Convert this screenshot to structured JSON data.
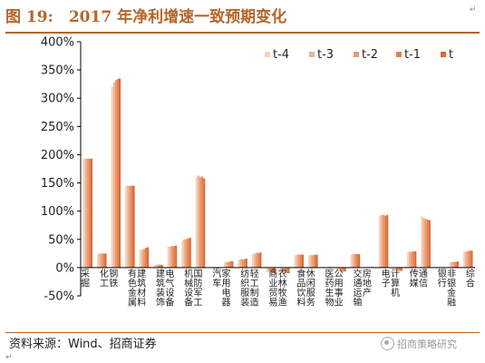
{
  "figure": {
    "title": "图 19:　2017 年净利增速一致预期变化",
    "title_mark": "↵",
    "source": "资料来源：Wind、招商证券",
    "source_mark": "↵",
    "watermark": "招商策略研究"
  },
  "chart_data": {
    "type": "bar",
    "title": "",
    "xlabel": "",
    "ylabel": "",
    "ylim": [
      -50,
      400
    ],
    "yticks": [
      -50,
      0,
      50,
      100,
      150,
      200,
      250,
      300,
      350,
      400
    ],
    "y_unit": "%",
    "grid": false,
    "legend_position": "top-right",
    "categories": [
      "采掘",
      "化工",
      "钢铁",
      "有色金属",
      "建筑材料",
      "建筑装饰",
      "电气设备",
      "机械设备",
      "国防军工",
      "汽车",
      "家用电器",
      "纺织服装",
      "轻工制造",
      "商业贸易",
      "农林牧渔",
      "食品饮料",
      "休闲服务",
      "医药生物",
      "公用事业",
      "交通运输",
      "房地产",
      "电子",
      "计算机",
      "传媒",
      "通信",
      "银行",
      "非银金融",
      "综合"
    ],
    "series": [
      {
        "name": "t-4",
        "color": "#f3d1bd",
        "values": [
          193,
          24,
          320,
          145,
          31,
          4,
          37,
          49,
          161,
          -1,
          10,
          14,
          24,
          -8,
          -8,
          22,
          22,
          1,
          -6,
          23,
          1,
          92,
          -5,
          27,
          91,
          0,
          9,
          28
        ]
      },
      {
        "name": "t-3",
        "color": "#eeb393",
        "values": [
          193,
          25,
          328,
          145,
          32,
          5,
          37,
          50,
          163,
          -1,
          10,
          15,
          25,
          -8,
          -9,
          23,
          22,
          1,
          -6,
          24,
          1,
          93,
          -5,
          28,
          88,
          0,
          10,
          29
        ]
      },
      {
        "name": "t-2",
        "color": "#e99870",
        "values": [
          193,
          25,
          332,
          145,
          33,
          5,
          38,
          51,
          160,
          -2,
          10,
          15,
          26,
          -9,
          -9,
          23,
          22,
          1,
          -7,
          24,
          1,
          93,
          -6,
          28,
          86,
          0,
          10,
          29
        ]
      },
      {
        "name": "t-1",
        "color": "#e4824f",
        "values": [
          193,
          25,
          334,
          145,
          35,
          5,
          38,
          52,
          161,
          -2,
          11,
          15,
          26,
          -9,
          -10,
          23,
          23,
          1,
          -7,
          24,
          1,
          92,
          -6,
          29,
          85,
          0,
          10,
          30
        ]
      },
      {
        "name": "t",
        "color": "#d96a34",
        "values": [
          193,
          25,
          335,
          145,
          36,
          5,
          39,
          53,
          158,
          -2,
          11,
          16,
          27,
          -10,
          -10,
          23,
          23,
          1,
          -7,
          24,
          1,
          93,
          -6,
          29,
          84,
          1,
          11,
          30
        ]
      }
    ]
  }
}
